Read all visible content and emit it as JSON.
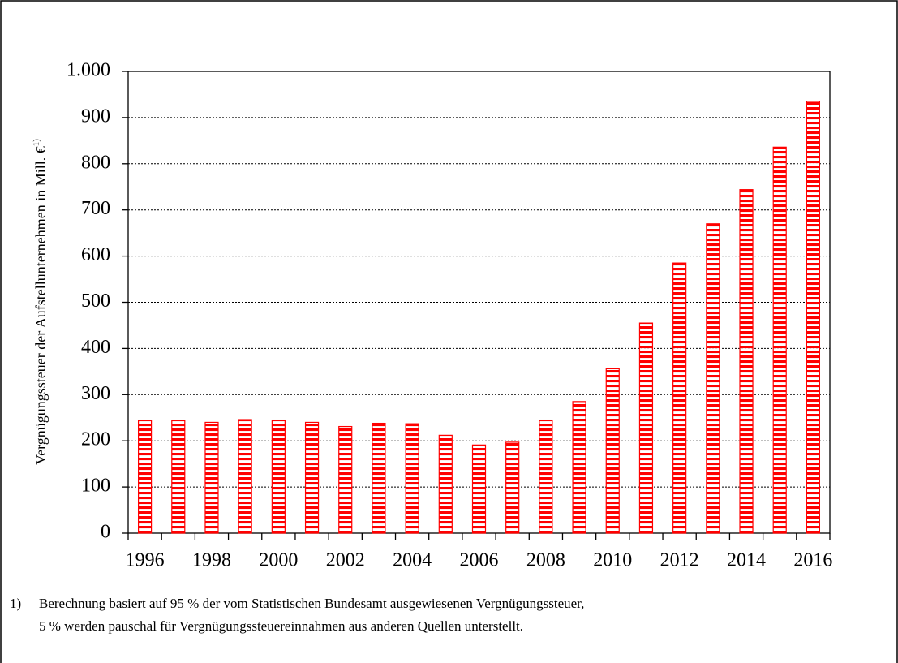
{
  "chart_data": {
    "type": "bar",
    "ylabel": "Vergnügungssteuer der Aufstellunternehmen in Mill. €",
    "ylabel_note": "1)",
    "categories": [
      "1996",
      null,
      "1998",
      null,
      "2000",
      null,
      "2002",
      null,
      "2004",
      null,
      "2006",
      null,
      "2008",
      null,
      "2010",
      null,
      "2012",
      null,
      "2014",
      null,
      "2016"
    ],
    "values": [
      244,
      244,
      240,
      246,
      245,
      240,
      231,
      238,
      237,
      212,
      191,
      197,
      245,
      285,
      356,
      455,
      585,
      670,
      744,
      836,
      935
    ],
    "color": "#ff0000",
    "ylim": [
      0,
      1000
    ],
    "yticks": [
      0,
      100,
      200,
      300,
      400,
      500,
      600,
      700,
      800,
      900,
      {
        "value": 1000,
        "label": "1.000"
      }
    ],
    "grid": true,
    "footnote": {
      "marker": "1)",
      "lines": [
        "Berechnung basiert auf 95 % der vom Statistischen Bundesamt ausgewiesenen Vergnügungssteuer,",
        "5 % werden pauschal für Vergnügungssteuereinnahmen aus anderen Quellen unterstellt."
      ]
    }
  }
}
